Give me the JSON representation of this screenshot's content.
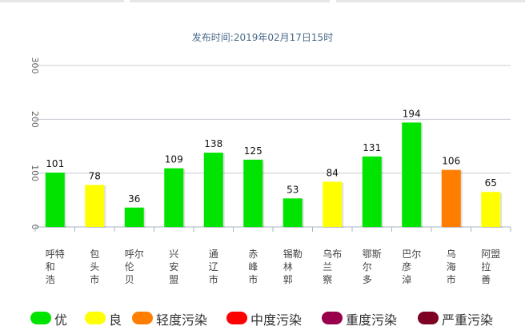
{
  "subtitle": "发布时间:2019年02月17日15时",
  "chart_data": {
    "type": "bar",
    "categories": [
      "呼和浩特市",
      "包头市",
      "呼伦贝尔市",
      "兴安盟",
      "通辽市",
      "赤峰市",
      "锡林郭勒盟",
      "乌兰察布市",
      "鄂尔多斯市",
      "巴彦淖尔市",
      "乌海市",
      "阿拉善盟"
    ],
    "category_labels_visible": [
      "呼和浩特",
      "包头市",
      "呼伦贝尔",
      "兴安盟",
      "通辽市",
      "赤峰市",
      "锡林郭勒",
      "乌兰察布",
      "鄂尔多斯",
      "巴彦淖尔",
      "乌海市",
      "阿拉善盟"
    ],
    "values": [
      101,
      78,
      36,
      109,
      138,
      125,
      53,
      84,
      131,
      194,
      106,
      65
    ],
    "levels": [
      "优",
      "良",
      "优",
      "优",
      "优",
      "优",
      "优",
      "良",
      "优",
      "优",
      "轻度污染",
      "良"
    ],
    "ylim": [
      0,
      300
    ],
    "yticks": [
      0,
      100,
      200,
      300
    ],
    "grid": true,
    "legend_position": "bottom-left",
    "legend": [
      {
        "name": "优",
        "color": "#00e400"
      },
      {
        "name": "良",
        "color": "#ffff00"
      },
      {
        "name": "轻度污染",
        "color": "#ff7e00"
      },
      {
        "name": "中度污染",
        "color": "#ff0000"
      },
      {
        "name": "重度污染",
        "color": "#99004c"
      },
      {
        "name": "严重污染",
        "color": "#7e0023"
      }
    ]
  }
}
